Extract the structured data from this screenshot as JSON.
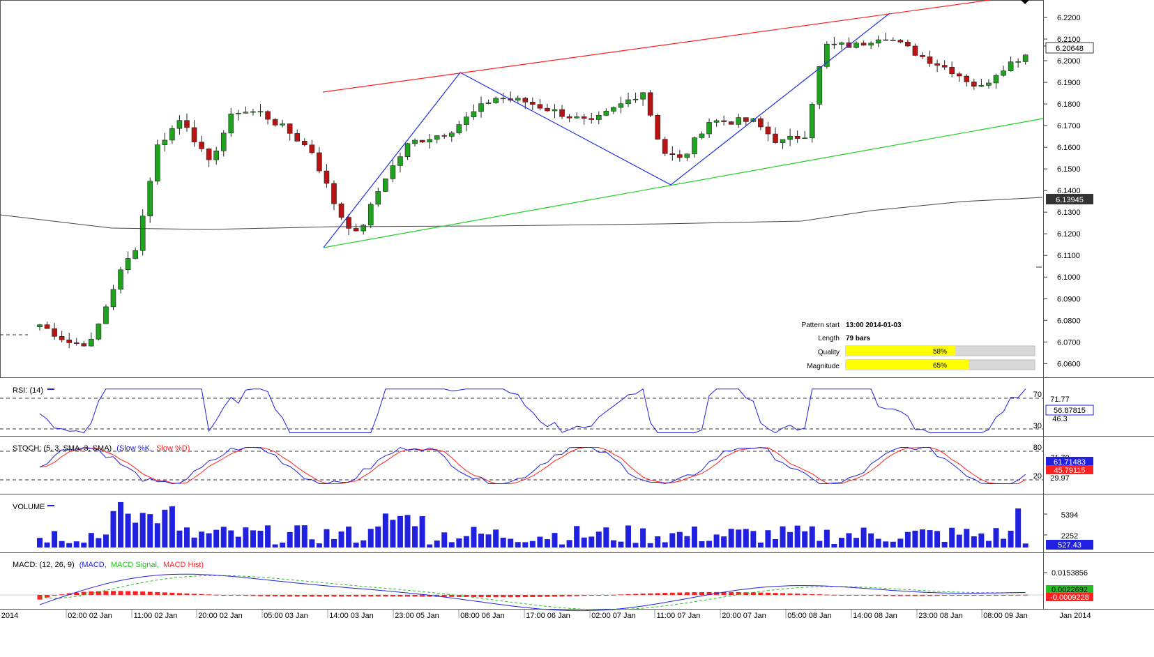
{
  "main": {
    "price_axis_ticks": [
      "6.2200",
      "6.2100",
      "6.2000",
      "6.1900",
      "6.1800",
      "6.1700",
      "6.1600",
      "6.1500",
      "6.1400",
      "6.1300",
      "6.1200",
      "6.1100",
      "6.1000",
      "6.0900",
      "6.0800",
      "6.0700",
      "6.0600"
    ],
    "current_price_label": "6.20648",
    "ma_price_label": "6.13945"
  },
  "pattern_info": {
    "start_label": "Pattern start",
    "start_value": "13:00 2014-01-03",
    "length_label": "Length",
    "length_value": "79 bars",
    "quality_label": "Quality",
    "quality_value": "58%",
    "quality_fraction": 0.58,
    "magnitude_label": "Magnitude",
    "magnitude_value": "65%",
    "magnitude_fraction": 0.65
  },
  "rsi": {
    "title": "RSI: (14)",
    "level_high": "70",
    "level_low": "30",
    "value_label": "56.87815",
    "aux_label_1": "71.77",
    "aux_label_2": "46.3"
  },
  "stoch": {
    "title_prefix": "STOCH: (5, 3, SMA, 3, SMA)",
    "title_k": "(Slow %K,",
    "title_d": "Slow %D)",
    "level_high": "80",
    "level_low": "20",
    "k_label": "61.71483",
    "d_label": "45.79115",
    "aux_label_1": "71.79",
    "aux_label_2": "29.97"
  },
  "volume": {
    "title": "VOLUME",
    "tick_high": "5394",
    "tick_low": "2252",
    "value_label": "527.43"
  },
  "macd": {
    "title_prefix": "MACD: (12, 26, 9)",
    "title_macd": "(MACD,",
    "title_signal": "MACD Signal,",
    "title_hist": "MACD Hist)",
    "tick_high": "0.0153856",
    "value_label_1": "0.0022692",
    "value_label_2": "-0.0009228"
  },
  "x_axis": {
    "labels": [
      "2014",
      "02:00 02 Jan",
      "11:00 02 Jan",
      "20:00 02 Jan",
      "05:00 03 Jan",
      "14:00 03 Jan",
      "23:00 05 Jan",
      "08:00 06 Jan",
      "17:00 06 Jan",
      "02:00 07 Jan",
      "11:00 07 Jan",
      "20:00 07 Jan",
      "05:00 08 Jan",
      "14:00 08 Jan",
      "23:00 08 Jan",
      "08:00 09 Jan",
      "Jan 2014"
    ]
  },
  "colors": {
    "up_candle": "#1fa31f",
    "down_candle": "#b81414",
    "harmonic_line": "#2030e0",
    "upper_channel": "#ff2020",
    "lower_channel": "#22d022",
    "moving_average": "#444444",
    "indicator_blue": "#2020e0",
    "indicator_red": "#ff2020",
    "progress_fill": "#ffff00"
  }
}
